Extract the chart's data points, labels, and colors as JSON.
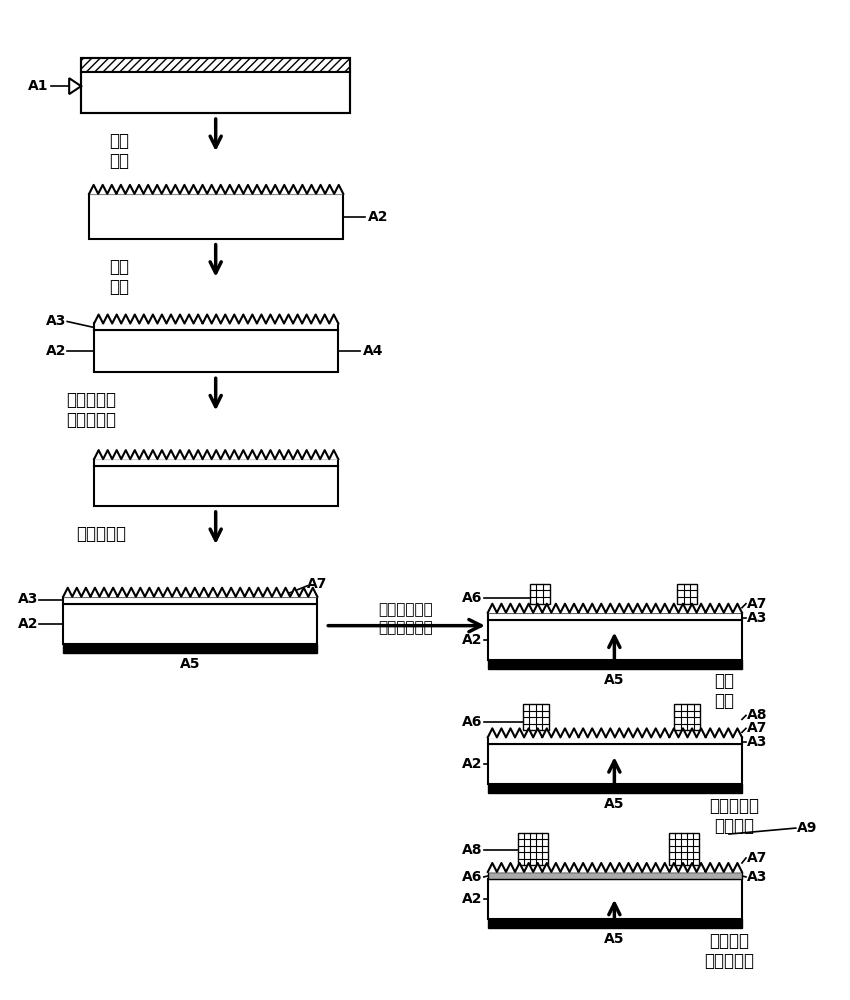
{
  "bg_color": "#ffffff",
  "line_color": "#000000",
  "labels": {
    "step1": "清洗\n制绒",
    "step2": "扩散\n制结",
    "step3": "去磷硅玻璃\n边缘结刻蚀",
    "step4": "制备背电极",
    "step5": "光诱导电镀前\n栅电极接触层",
    "step6": "氧化\n烧结",
    "step7": "电镀前栅电\n极传导层",
    "step8": "遮挡主栅\n镀减反射膜"
  }
}
